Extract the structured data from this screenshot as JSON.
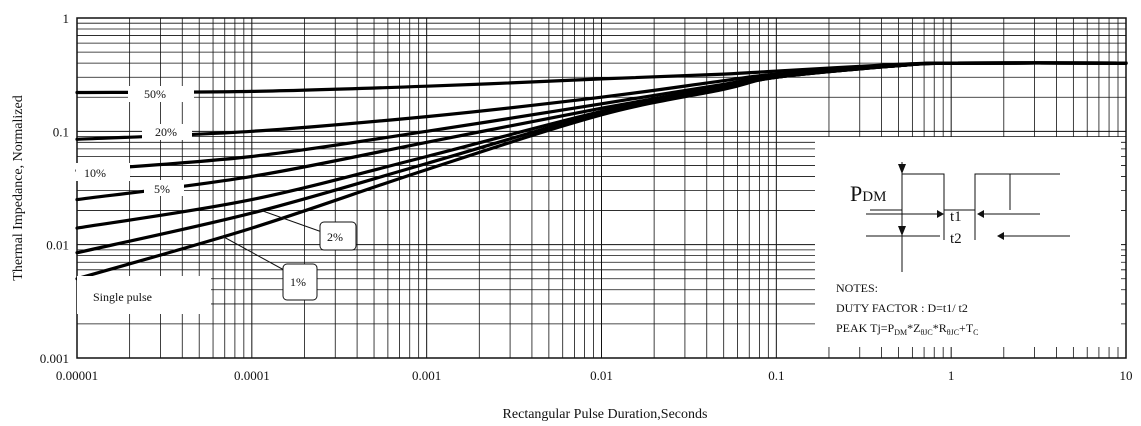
{
  "chart_data": {
    "type": "line",
    "xscale": "log",
    "yscale": "log",
    "xlim": [
      1e-05,
      10
    ],
    "ylim": [
      0.001,
      1
    ],
    "xlabel": "Rectangular Pulse Duration,Seconds",
    "ylabel": "Thermal Impedance, Normalized",
    "x_ticks": [
      "0.00001",
      "0.0001",
      "0.001",
      "0.01",
      "0.1",
      "1",
      "10"
    ],
    "y_ticks": [
      "0.001",
      "0.01",
      "0.1",
      "1"
    ],
    "grid": true,
    "series": [
      {
        "name": "50%",
        "x": [
          1e-05,
          0.0001,
          0.001,
          0.01,
          0.05,
          0.1,
          0.5,
          1,
          10
        ],
        "y": [
          0.22,
          0.225,
          0.25,
          0.29,
          0.32,
          0.34,
          0.39,
          0.4,
          0.4
        ]
      },
      {
        "name": "20%",
        "x": [
          1e-05,
          0.0001,
          0.001,
          0.01,
          0.05,
          0.1,
          0.5,
          1,
          10
        ],
        "y": [
          0.085,
          0.1,
          0.135,
          0.2,
          0.28,
          0.32,
          0.38,
          0.4,
          0.4
        ]
      },
      {
        "name": "10%",
        "x": [
          1e-05,
          0.0001,
          0.001,
          0.01,
          0.05,
          0.1,
          0.5,
          1,
          10
        ],
        "y": [
          0.045,
          0.06,
          0.1,
          0.175,
          0.26,
          0.31,
          0.38,
          0.4,
          0.4
        ]
      },
      {
        "name": "5%",
        "x": [
          1e-05,
          0.0001,
          0.001,
          0.01,
          0.05,
          0.1,
          0.5,
          1,
          10
        ],
        "y": [
          0.025,
          0.04,
          0.08,
          0.16,
          0.25,
          0.31,
          0.38,
          0.4,
          0.4
        ]
      },
      {
        "name": "2%",
        "x": [
          1e-05,
          0.0001,
          0.001,
          0.01,
          0.05,
          0.1,
          0.5,
          1,
          10
        ],
        "y": [
          0.014,
          0.025,
          0.06,
          0.15,
          0.245,
          0.3,
          0.38,
          0.4,
          0.4
        ]
      },
      {
        "name": "1%",
        "x": [
          1e-05,
          0.0001,
          0.001,
          0.01,
          0.05,
          0.1,
          0.5,
          1,
          10
        ],
        "y": [
          0.0085,
          0.019,
          0.052,
          0.145,
          0.24,
          0.3,
          0.38,
          0.4,
          0.4
        ]
      },
      {
        "name": "Single pulse",
        "x": [
          1e-05,
          0.0001,
          0.001,
          0.01,
          0.05,
          0.1,
          0.5,
          1,
          10
        ],
        "y": [
          0.005,
          0.014,
          0.046,
          0.14,
          0.235,
          0.3,
          0.38,
          0.4,
          0.4
        ]
      }
    ],
    "curve_labels": [
      "50%",
      "20%",
      "10%",
      "5%",
      "2%",
      "1%",
      "Single pulse"
    ],
    "inset": {
      "pdm_main": "P",
      "pdm_sub": "DM",
      "t1": "t1",
      "t2": "t2"
    },
    "notes": {
      "heading": "NOTES:",
      "duty_factor": "DUTY FACTOR  :  D=t1/ t2",
      "peak_prefix": "PEAK Tj=P",
      "peak_sub1": "DM",
      "peak_mid1": "*Z",
      "peak_sub2": "θJC",
      "peak_mid2": "*R",
      "peak_sub3": "θJC",
      "peak_mid3": "+T",
      "peak_sub4": "C"
    }
  }
}
